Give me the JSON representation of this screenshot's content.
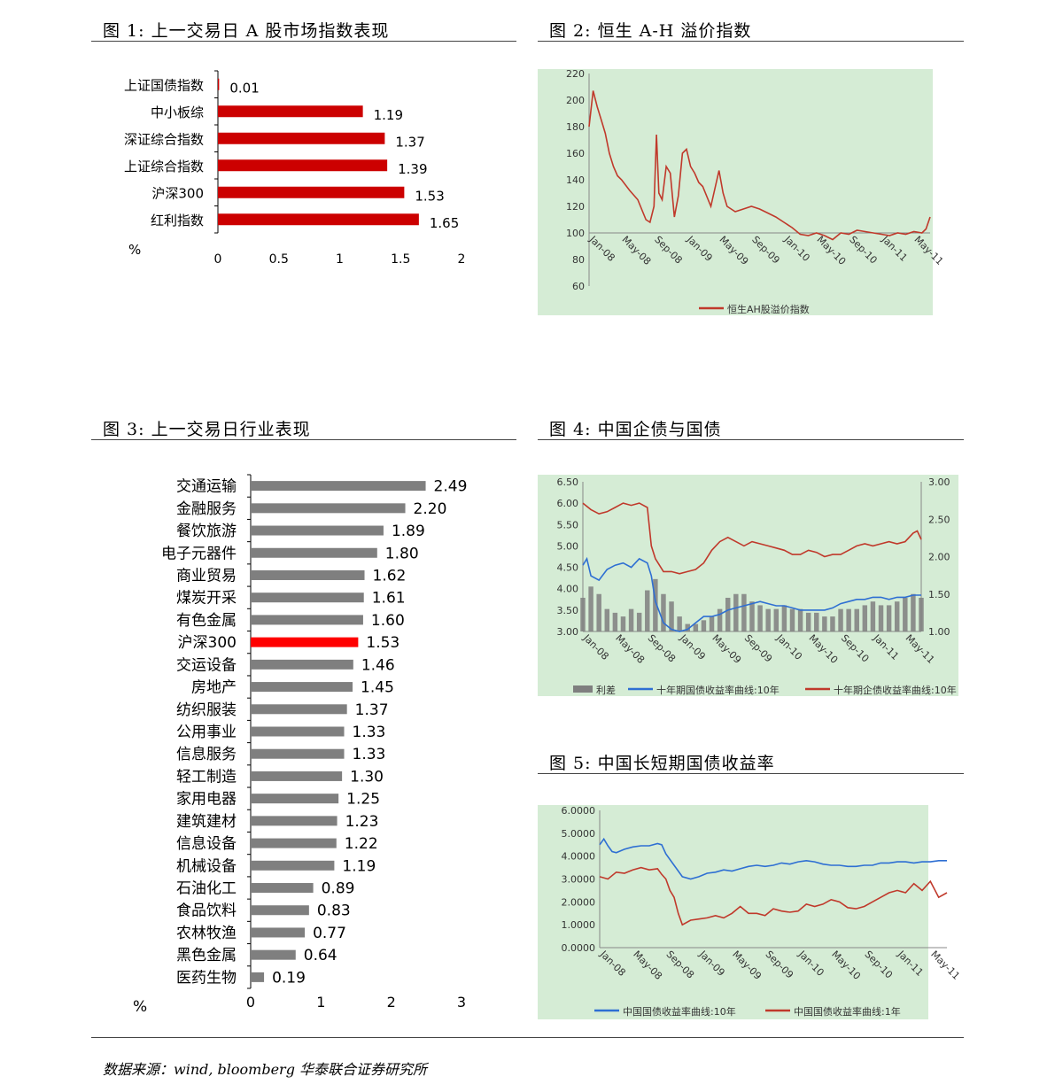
{
  "source": "数据来源：wind, bloomberg 华泰联合证券研究所",
  "figures": {
    "fig1": {
      "title": "图 1:  上一交易日 A 股市场指数表现"
    },
    "fig2": {
      "title": "图 2:  恒生 A-H 溢价指数"
    },
    "fig3": {
      "title": "图 3:  上一交易日行业表现"
    },
    "fig4": {
      "title": "图 4:  中国企债与国债"
    },
    "fig5": {
      "title": "图 5:  中国长短期国债收益率"
    }
  },
  "chart_data": [
    {
      "id": "fig1",
      "type": "bar",
      "orientation": "horizontal",
      "unit_label": "%",
      "categories": [
        "上证国债指数",
        "中小板综",
        "深证综合指数",
        "上证综合指数",
        "沪深300",
        "红利指数"
      ],
      "values": [
        0.01,
        1.19,
        1.37,
        1.39,
        1.53,
        1.65
      ],
      "value_labels": [
        "0.01",
        "1.19",
        "1.37",
        "1.39",
        "1.53",
        "1.65"
      ],
      "xlim": [
        0,
        2
      ],
      "xticks": [
        "0",
        "0.5",
        "1",
        "1.5",
        "2"
      ],
      "color": "#cc0000"
    },
    {
      "id": "fig2",
      "type": "line",
      "ylim": [
        60,
        220
      ],
      "yticks": [
        "60",
        "80",
        "100",
        "120",
        "140",
        "160",
        "180",
        "200",
        "220"
      ],
      "xticks": [
        "Jan-08",
        "May-08",
        "Sep-08",
        "Jan-09",
        "May-09",
        "Sep-09",
        "Jan-10",
        "May-10",
        "Sep-10",
        "Jan-11",
        "May-11"
      ],
      "x_range_months": [
        0,
        42
      ],
      "series": [
        {
          "name": "恒生AH股溢价指数",
          "color": "#c0392b",
          "x": [
            0,
            0.5,
            1,
            1.5,
            2,
            2.5,
            3,
            3.5,
            4,
            5,
            6,
            7,
            7.5,
            8,
            8.3,
            8.6,
            9,
            9.5,
            10,
            10.5,
            11,
            11.5,
            12,
            12.5,
            13,
            13.5,
            14,
            15,
            16,
            16.5,
            17,
            17.5,
            18,
            19,
            20,
            21,
            22,
            23,
            24,
            25,
            26,
            27,
            28,
            29,
            30,
            31,
            32,
            33,
            34,
            35,
            36,
            37,
            38,
            39,
            40,
            41,
            41.5,
            42
          ],
          "y": [
            180,
            207,
            195,
            185,
            175,
            160,
            150,
            143,
            140,
            132,
            125,
            110,
            108,
            120,
            174,
            130,
            125,
            150,
            145,
            112,
            128,
            160,
            163,
            150,
            145,
            138,
            135,
            120,
            147,
            130,
            120,
            118,
            116,
            118,
            120,
            118,
            115,
            112,
            108,
            104,
            99,
            98,
            100,
            98,
            95,
            100,
            99,
            102,
            101,
            100,
            99,
            98,
            100,
            99,
            101,
            100,
            103,
            112
          ]
        }
      ]
    },
    {
      "id": "fig3",
      "type": "bar",
      "orientation": "horizontal",
      "unit_label": "%",
      "categories": [
        "交通运输",
        "金融服务",
        "餐饮旅游",
        "电子元器件",
        "商业贸易",
        "煤炭开采",
        "有色金属",
        "沪深300",
        "交运设备",
        "房地产",
        "纺织服装",
        "公用事业",
        "信息服务",
        "轻工制造",
        "家用电器",
        "建筑建材",
        "信息设备",
        "机械设备",
        "石油化工",
        "食品饮料",
        "农林牧渔",
        "黑色金属",
        "医药生物"
      ],
      "values": [
        2.49,
        2.2,
        1.89,
        1.8,
        1.62,
        1.61,
        1.6,
        1.53,
        1.46,
        1.45,
        1.37,
        1.33,
        1.33,
        1.3,
        1.25,
        1.23,
        1.22,
        1.19,
        0.89,
        0.83,
        0.77,
        0.64,
        0.19
      ],
      "value_labels": [
        "2.49",
        "2.20",
        "1.89",
        "1.80",
        "1.62",
        "1.61",
        "1.60",
        "1.53",
        "1.46",
        "1.45",
        "1.37",
        "1.33",
        "1.33",
        "1.30",
        "1.25",
        "1.23",
        "1.22",
        "1.19",
        "0.89",
        "0.83",
        "0.77",
        "0.64",
        "0.19"
      ],
      "highlight": "沪深300",
      "xlim": [
        0,
        3
      ],
      "xticks": [
        "0",
        "1",
        "2",
        "3"
      ],
      "color": "#7f7f7f",
      "highlight_color": "#ff0000"
    },
    {
      "id": "fig4",
      "type": "line",
      "ylim_left": [
        3.0,
        6.5
      ],
      "yticks_left": [
        "3.00",
        "3.50",
        "4.00",
        "4.50",
        "5.00",
        "5.50",
        "6.00",
        "6.50"
      ],
      "ylim_right": [
        1.0,
        3.0
      ],
      "yticks_right": [
        "1.00",
        "1.50",
        "2.00",
        "2.50",
        "3.00"
      ],
      "xticks": [
        "Jan-08",
        "May-08",
        "Sep-08",
        "Jan-09",
        "May-09",
        "Sep-09",
        "Jan-10",
        "May-10",
        "Sep-10",
        "Jan-11",
        "May-11"
      ],
      "x_range_months": [
        0,
        42
      ],
      "series": [
        {
          "name": "利差",
          "type": "bar",
          "axis": "right",
          "color": "#7f7f7f",
          "x": [
            0,
            1,
            2,
            3,
            4,
            5,
            6,
            7,
            8,
            9,
            10,
            11,
            12,
            13,
            14,
            15,
            16,
            17,
            18,
            19,
            20,
            21,
            22,
            23,
            24,
            25,
            26,
            27,
            28,
            29,
            30,
            31,
            32,
            33,
            34,
            35,
            36,
            37,
            38,
            39,
            40,
            41,
            42
          ],
          "y": [
            1.45,
            1.6,
            1.5,
            1.3,
            1.25,
            1.2,
            1.3,
            1.25,
            1.55,
            1.7,
            1.5,
            1.4,
            1.2,
            1.1,
            1.1,
            1.15,
            1.2,
            1.3,
            1.45,
            1.5,
            1.5,
            1.4,
            1.35,
            1.3,
            1.3,
            1.35,
            1.3,
            1.3,
            1.25,
            1.25,
            1.2,
            1.2,
            1.3,
            1.3,
            1.3,
            1.35,
            1.4,
            1.35,
            1.35,
            1.4,
            1.45,
            1.5,
            1.45
          ]
        },
        {
          "name": "十年期国债收益率曲线:10年",
          "axis": "left",
          "color": "#2e6fd3",
          "x": [
            0,
            0.5,
            1,
            2,
            3,
            4,
            5,
            6,
            7,
            8,
            8.5,
            9,
            10,
            11,
            12,
            13,
            14,
            15,
            16,
            17,
            18,
            19,
            20,
            21,
            22,
            23,
            24,
            25,
            26,
            27,
            28,
            29,
            30,
            31,
            32,
            33,
            34,
            35,
            36,
            37,
            38,
            39,
            40,
            41,
            42
          ],
          "y": [
            4.55,
            4.7,
            4.3,
            4.2,
            4.45,
            4.55,
            4.6,
            4.5,
            4.7,
            4.6,
            4.3,
            3.7,
            3.2,
            3.05,
            3.0,
            3.05,
            3.2,
            3.35,
            3.35,
            3.4,
            3.5,
            3.55,
            3.6,
            3.65,
            3.7,
            3.65,
            3.6,
            3.6,
            3.55,
            3.5,
            3.5,
            3.5,
            3.5,
            3.55,
            3.65,
            3.7,
            3.75,
            3.75,
            3.8,
            3.8,
            3.75,
            3.8,
            3.8,
            3.85,
            3.85
          ]
        },
        {
          "name": "十年期企债收益率曲线:10年",
          "axis": "left",
          "color": "#c0392b",
          "x": [
            0,
            1,
            2,
            3,
            4,
            5,
            6,
            7,
            8,
            8.5,
            9,
            10,
            11,
            12,
            13,
            14,
            15,
            16,
            17,
            18,
            19,
            20,
            21,
            22,
            23,
            24,
            25,
            26,
            27,
            28,
            29,
            30,
            31,
            32,
            33,
            34,
            35,
            36,
            37,
            38,
            39,
            40,
            41,
            41.5,
            42
          ],
          "y": [
            6.0,
            5.85,
            5.75,
            5.8,
            5.9,
            6.0,
            5.95,
            6.0,
            5.9,
            5.0,
            4.7,
            4.4,
            4.4,
            4.35,
            4.4,
            4.45,
            4.6,
            4.9,
            5.1,
            5.2,
            5.1,
            5.0,
            5.1,
            5.05,
            5.0,
            4.95,
            4.9,
            4.8,
            4.8,
            4.9,
            4.85,
            4.75,
            4.8,
            4.8,
            4.9,
            5.0,
            5.05,
            5.0,
            5.05,
            5.1,
            5.05,
            5.1,
            5.3,
            5.35,
            5.15
          ]
        }
      ]
    },
    {
      "id": "fig5",
      "type": "line",
      "ylim": [
        0,
        6
      ],
      "yticks": [
        "0.0000",
        "1.0000",
        "2.0000",
        "3.0000",
        "4.0000",
        "5.0000",
        "6.0000"
      ],
      "xticks": [
        "Jan-08",
        "May-08",
        "Sep-08",
        "Jan-09",
        "May-09",
        "Sep-09",
        "Jan-10",
        "May-10",
        "Sep-10",
        "Jan-11",
        "May-11"
      ],
      "x_range_months": [
        0,
        42
      ],
      "series": [
        {
          "name": "中国国债收益率曲线:10年",
          "color": "#2e6fd3",
          "x": [
            0,
            0.5,
            1,
            1.5,
            2,
            3,
            4,
            5,
            6,
            7,
            7.5,
            8,
            9,
            10,
            11,
            12,
            13,
            14,
            15,
            16,
            17,
            18,
            19,
            20,
            21,
            22,
            23,
            24,
            25,
            26,
            27,
            28,
            29,
            30,
            31,
            32,
            33,
            34,
            35,
            36,
            37,
            38,
            39,
            40,
            41,
            42
          ],
          "y": [
            4.5,
            4.75,
            4.45,
            4.2,
            4.15,
            4.3,
            4.4,
            4.45,
            4.45,
            4.55,
            4.5,
            4.1,
            3.6,
            3.1,
            3.0,
            3.1,
            3.25,
            3.3,
            3.4,
            3.35,
            3.45,
            3.55,
            3.6,
            3.55,
            3.6,
            3.7,
            3.65,
            3.75,
            3.8,
            3.75,
            3.65,
            3.6,
            3.6,
            3.55,
            3.55,
            3.6,
            3.6,
            3.7,
            3.7,
            3.75,
            3.75,
            3.7,
            3.75,
            3.75,
            3.8,
            3.8
          ]
        },
        {
          "name": "中国国债收益率曲线:1年",
          "color": "#c0392b",
          "x": [
            0,
            1,
            2,
            3,
            4,
            5,
            6,
            7,
            7.5,
            8,
            8.5,
            9,
            9.5,
            10,
            11,
            12,
            13,
            14,
            15,
            16,
            17,
            18,
            19,
            20,
            21,
            22,
            23,
            24,
            25,
            26,
            27,
            28,
            29,
            30,
            31,
            32,
            33,
            34,
            35,
            36,
            37,
            38,
            39,
            40,
            41,
            42
          ],
          "y": [
            3.1,
            3.0,
            3.3,
            3.25,
            3.4,
            3.5,
            3.4,
            3.45,
            3.2,
            3.0,
            2.5,
            2.2,
            1.5,
            1.0,
            1.2,
            1.25,
            1.3,
            1.4,
            1.3,
            1.5,
            1.8,
            1.5,
            1.5,
            1.4,
            1.7,
            1.6,
            1.55,
            1.6,
            1.9,
            1.8,
            1.9,
            2.1,
            2.0,
            1.75,
            1.7,
            1.8,
            2.0,
            2.2,
            2.4,
            2.5,
            2.4,
            2.8,
            2.5,
            2.9,
            2.2,
            2.4
          ]
        }
      ]
    }
  ]
}
